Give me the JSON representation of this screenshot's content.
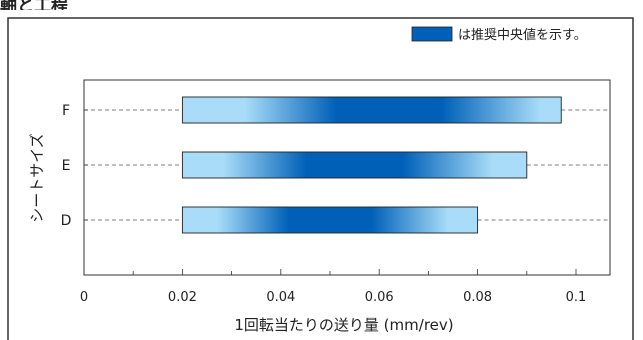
{
  "header_fragment": "軸と工程",
  "legend": {
    "label": "は推奨中央値を示す。",
    "color": "#0060b8"
  },
  "chart_data": {
    "type": "bar",
    "orientation": "horizontal-range",
    "xlabel": "1回転当たりの送り量 (mm/rev)",
    "ylabel": "シートサイズ",
    "xlim": [
      0,
      0.1
    ],
    "xticks": [
      "0",
      "0.02",
      "0.04",
      "0.06",
      "0.08",
      "0.1"
    ],
    "categories": [
      "F",
      "E",
      "D"
    ],
    "ranges": [
      {
        "category": "F",
        "min": 0.02,
        "max": 0.097,
        "recommended_center": 0.062
      },
      {
        "category": "E",
        "min": 0.02,
        "max": 0.09,
        "recommended_center": 0.055
      },
      {
        "category": "D",
        "min": 0.02,
        "max": 0.08,
        "recommended_center": 0.05
      }
    ],
    "colors": {
      "range_light": "#a8dcf8",
      "recommended": "#0060b8"
    },
    "grid": "dashed-category-lines"
  }
}
